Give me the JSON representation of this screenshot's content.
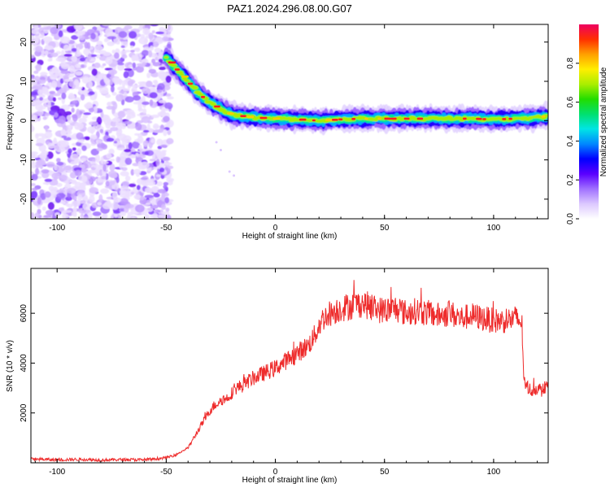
{
  "title": "PAZ1.2024.296.08.00.G07",
  "colors": {
    "snr_line": "#ee2b2b",
    "background": "#ffffff",
    "axis": "#000000"
  },
  "chart_data": [
    {
      "type": "heatmap",
      "title": "PAZ1.2024.296.08.00.G07",
      "xlabel": "Height of straight line (km)",
      "ylabel": "Frequency (Hz)",
      "xlim": [
        -112,
        125
      ],
      "ylim": [
        -25,
        24.5
      ],
      "x_ticks": [
        -100,
        -50,
        0,
        50,
        100
      ],
      "y_ticks": [
        -20,
        -10,
        0,
        10,
        20
      ],
      "grid": false,
      "colorbar": {
        "label": "Normalized spectral amplitude",
        "range": [
          0,
          1
        ],
        "ticks": [
          "0.0",
          "0.2",
          "0.4",
          "0.6",
          "0.8"
        ],
        "colors": [
          "#ffffff",
          "#dcc8ff",
          "#a070ff",
          "#5a00ff",
          "#0000ff",
          "#0088ff",
          "#00e5e5",
          "#00e070",
          "#22dd00",
          "#aaee00",
          "#ffee00",
          "#ffa000",
          "#ff3000",
          "#ee0060"
        ]
      },
      "noise_region_x": [
        -112,
        -50
      ],
      "peak_ridge": {
        "x": [
          -50,
          -45,
          -40,
          -35,
          -30,
          -25,
          -20,
          -10,
          0,
          10,
          20,
          30,
          40,
          50,
          60,
          70,
          80,
          90,
          100,
          110,
          120,
          125
        ],
        "frequency": [
          16,
          13,
          10,
          7,
          4.5,
          3,
          1.5,
          0.8,
          0.5,
          0.3,
          0,
          0.3,
          0.5,
          0.5,
          0.5,
          0.5,
          0.5,
          0.5,
          0.3,
          0.5,
          0.8,
          1.2
        ]
      }
    },
    {
      "type": "line",
      "xlabel": "Height of straight line (km)",
      "ylabel": "SNR (10 * v/v)",
      "xlim": [
        -112,
        125
      ],
      "ylim": [
        0,
        7800
      ],
      "x_ticks": [
        -100,
        -50,
        0,
        50,
        100
      ],
      "y_ticks": [
        2000,
        4000,
        6000
      ],
      "grid": false,
      "series": [
        {
          "x": [
            -112,
            -100,
            -90,
            -80,
            -70,
            -60,
            -50,
            -45,
            -42,
            -40,
            -38,
            -36,
            -34,
            -32,
            -30,
            -28,
            -25,
            -22,
            -20,
            -18,
            -15,
            -12,
            -10,
            -5,
            0,
            5,
            10,
            15,
            18,
            20,
            22,
            25,
            30,
            35,
            40,
            45,
            50,
            55,
            60,
            65,
            70,
            75,
            80,
            85,
            90,
            95,
            100,
            105,
            110,
            112,
            113,
            114,
            115,
            118,
            120,
            122,
            125
          ],
          "values": [
            150,
            120,
            140,
            110,
            130,
            120,
            200,
            350,
            500,
            600,
            900,
            1200,
            1500,
            1800,
            2100,
            2300,
            2500,
            2600,
            2800,
            3000,
            3100,
            3300,
            3400,
            3600,
            3800,
            4100,
            4400,
            4700,
            5100,
            5500,
            5800,
            6000,
            6200,
            6300,
            6400,
            6200,
            6100,
            6200,
            6000,
            6100,
            6000,
            5900,
            6000,
            5800,
            5900,
            5800,
            5700,
            5700,
            5800,
            5700,
            5500,
            3200,
            3000,
            2900,
            3000,
            2900,
            3100
          ]
        }
      ]
    }
  ]
}
